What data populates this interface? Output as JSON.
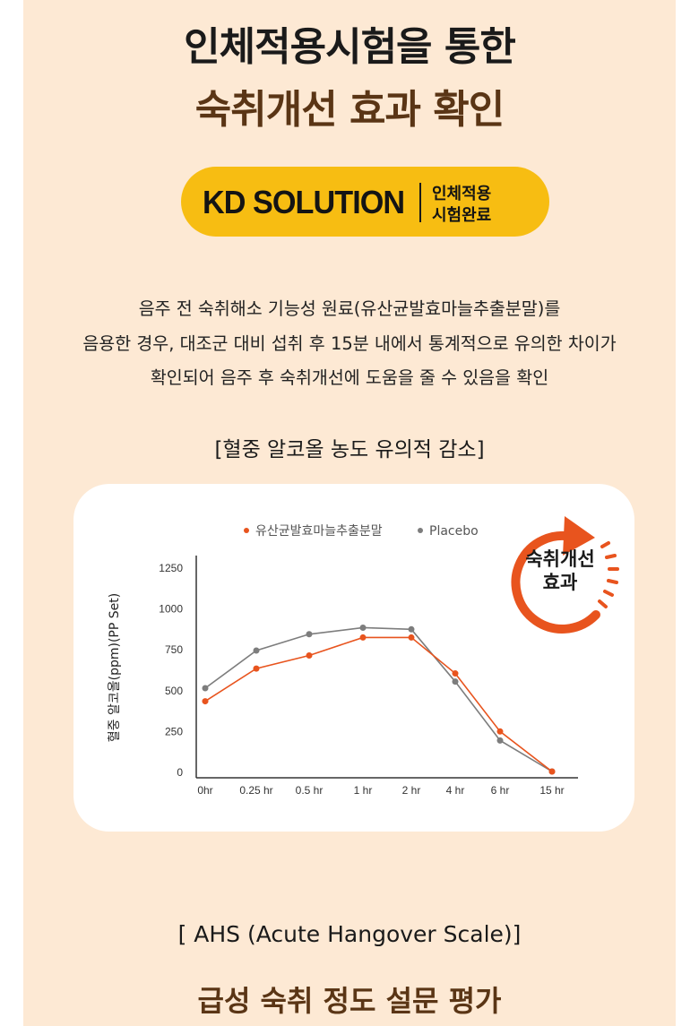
{
  "header": {
    "title_line1": "인체적용시험을 통한",
    "title_line2": "숙취개선 효과 확인"
  },
  "badge": {
    "main": "KD SOLUTION",
    "sub_line1": "인체적용",
    "sub_line2": "시험완료"
  },
  "description": {
    "line1": "음주 전 숙취해소 기능성 원료(유산균발효마늘추출분말)를",
    "line2": "음용한 경우, 대조군 대비 섭취 후 15분 내에서 통계적으로 유의한 차이가",
    "line3": "확인되어 음주 후 숙취개선에 도움을 줄 수 있음을 확인"
  },
  "section1_title": "[혈중 알코올 농도 유의적 감소]",
  "effect_label": {
    "line1": "숙취개선",
    "line2": "효과"
  },
  "chart_data": {
    "type": "line",
    "categories": [
      "0hr",
      "0.25 hr",
      "0.5 hr",
      "1 hr",
      "2 hr",
      "4 hr",
      "6 hr",
      "15 hr"
    ],
    "ylabel": "혈중 알코올(ppm)(PP Set)",
    "ylim": [
      0,
      1250
    ],
    "yticks": [
      "0",
      "250",
      "500",
      "750",
      "1000",
      "1250"
    ],
    "legend_position": "top",
    "grid": false,
    "series": [
      {
        "name": "유산균발효마늘추출분말",
        "color": "#e8541e",
        "values": [
          430,
          630,
          710,
          820,
          820,
          600,
          245,
          0
        ]
      },
      {
        "name": "Placebo",
        "color": "#7d7d7d",
        "values": [
          510,
          740,
          840,
          880,
          870,
          550,
          190,
          0
        ]
      }
    ]
  },
  "section2_title": "[ AHS (Acute Hangover Scale)]",
  "bottom_title": "급성 숙취 정도 설문 평가"
}
